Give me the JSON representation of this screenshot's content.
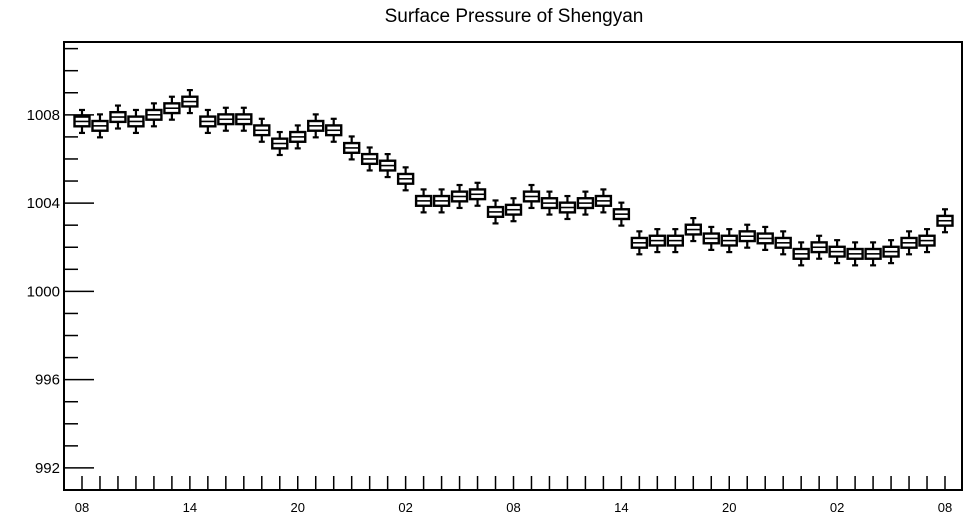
{
  "chart_data": {
    "type": "box",
    "title": "Surface Pressure of Shengyan",
    "xlabel": "",
    "ylabel": "",
    "ylim": [
      991,
      1011.3
    ],
    "yticks": [
      992,
      996,
      1000,
      1004,
      1008
    ],
    "xtick_labels": [
      "08",
      "14",
      "20",
      "02",
      "08",
      "14",
      "20",
      "02",
      "08"
    ],
    "grid": false,
    "colors": {
      "box_fill": "#ffffff",
      "stroke": "#000000"
    },
    "values": [
      1007.7,
      1007.5,
      1007.9,
      1007.7,
      1008.0,
      1008.3,
      1008.6,
      1007.7,
      1007.8,
      1007.8,
      1007.3,
      1006.7,
      1007.0,
      1007.5,
      1007.3,
      1006.5,
      1006.0,
      1005.7,
      1005.1,
      1004.1,
      1004.1,
      1004.3,
      1004.4,
      1003.6,
      1003.7,
      1004.3,
      1004.0,
      1003.8,
      1004.0,
      1004.1,
      1003.5,
      1002.2,
      1002.3,
      1002.3,
      1002.8,
      1002.4,
      1002.3,
      1002.5,
      1002.4,
      1002.2,
      1001.7,
      1002.0,
      1001.8,
      1001.7,
      1001.7,
      1001.8,
      1002.2,
      1002.3,
      1003.2
    ]
  }
}
